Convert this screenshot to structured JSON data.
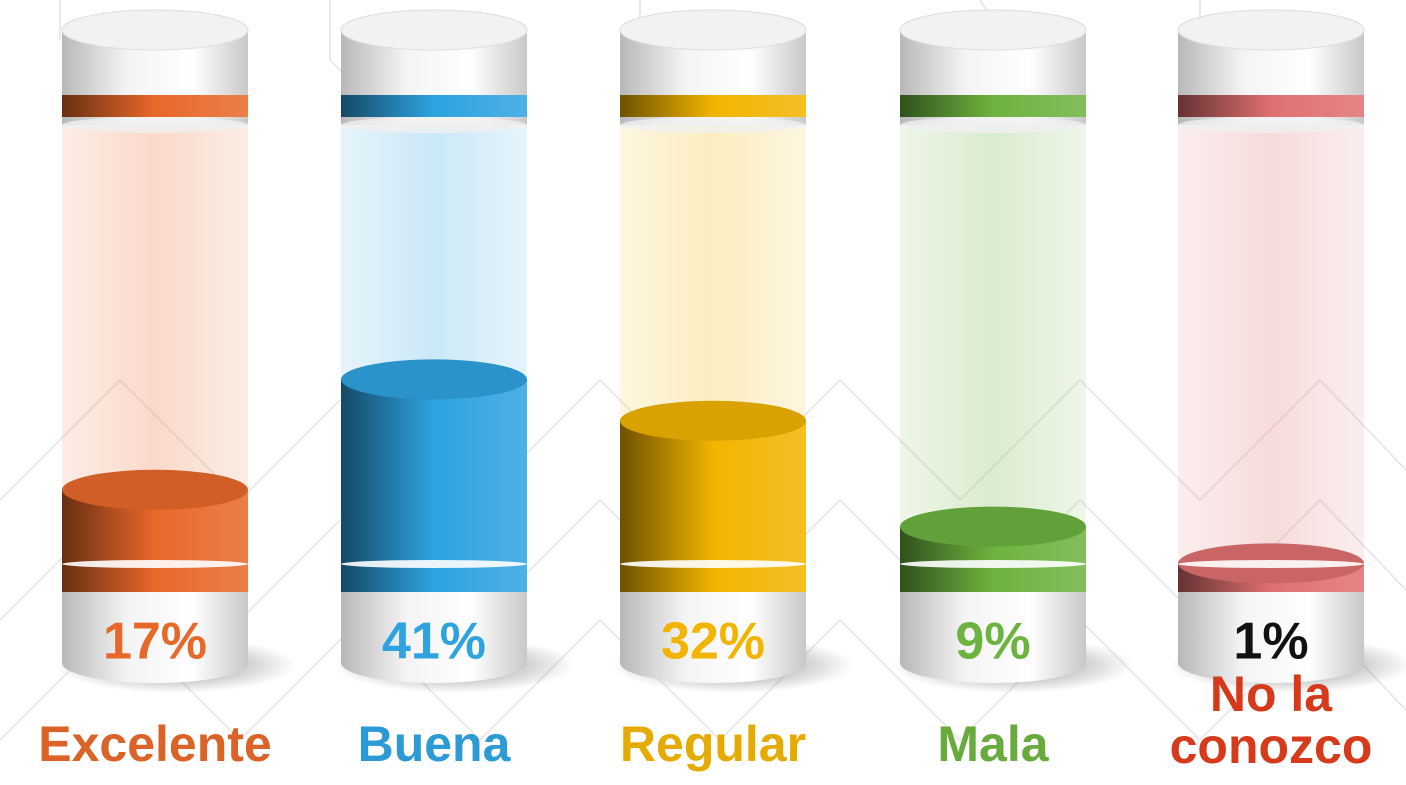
{
  "chart_data": {
    "type": "cylinder",
    "categories": [
      "Excelente",
      "Buena",
      "Regular",
      "Mala",
      "No la conozco"
    ],
    "values": [
      17,
      41,
      32,
      9,
      1
    ],
    "value_labels": [
      "17%",
      "41%",
      "32%",
      "9%",
      "1%"
    ],
    "colors": [
      "#e8682a",
      "#2ea3e0",
      "#f2b400",
      "#6db33f",
      "#e07070"
    ]
  }
}
